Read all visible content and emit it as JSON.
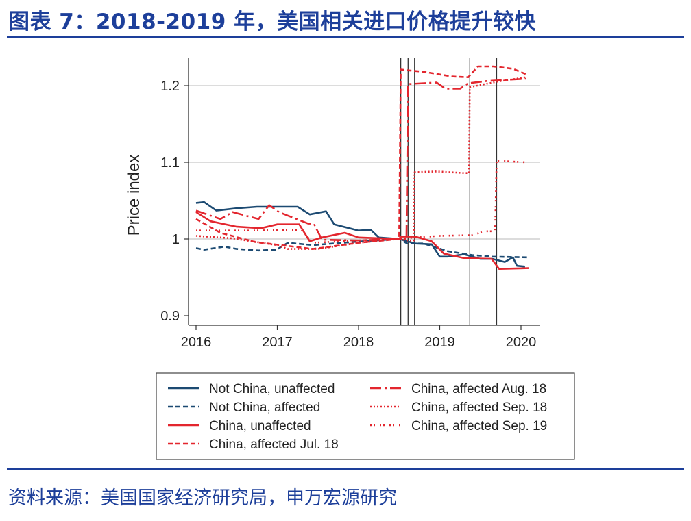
{
  "title": "图表 7：2018-2019 年，美国相关进口价格提升较快",
  "source": "资料来源：美国国家经济研究局，申万宏源研究",
  "chart_data": {
    "type": "line",
    "title": "",
    "xlabel": "",
    "ylabel": "Price index",
    "xlim": [
      2015.9,
      2020.2
    ],
    "ylim": [
      0.885,
      1.235
    ],
    "xticks": [
      2016,
      2017,
      2018,
      2019,
      2020
    ],
    "xtick_labels": [
      "2016",
      "2017",
      "2018",
      "2019",
      "2020"
    ],
    "yticks": [
      0.9,
      1,
      1.1,
      1.2
    ],
    "ytick_labels": [
      "0.9",
      "1",
      "1.1",
      "1.2"
    ],
    "grid": "horizontal",
    "legend_position": "bottom",
    "event_lines": [
      2018.52,
      2018.61,
      2018.69,
      2019.37,
      2019.7
    ],
    "colors": {
      "navy": "#1c4a72",
      "red": "#e3262e"
    },
    "series": [
      {
        "name": "Not China, unaffected",
        "color": "#1c4a72",
        "style": "solid",
        "x": [
          2016.0,
          2016.1,
          2016.25,
          2016.5,
          2016.75,
          2017.0,
          2017.25,
          2017.4,
          2017.6,
          2017.7,
          2018.0,
          2018.15,
          2018.25,
          2018.5,
          2018.7,
          2018.9,
          2019.0,
          2019.1,
          2019.3,
          2019.5,
          2019.65,
          2019.8,
          2019.9,
          2019.95,
          2020.05
        ],
        "y": [
          1.047,
          1.048,
          1.037,
          1.04,
          1.042,
          1.042,
          1.042,
          1.032,
          1.036,
          1.019,
          1.011,
          1.012,
          1.002,
          1.0,
          0.994,
          0.993,
          0.977,
          0.977,
          0.98,
          0.974,
          0.974,
          0.97,
          0.976,
          0.965,
          0.964
        ]
      },
      {
        "name": "Not China, affected",
        "color": "#1c4a72",
        "style": "dash",
        "x": [
          2016.0,
          2016.1,
          2016.35,
          2016.5,
          2016.77,
          2016.99,
          2017.13,
          2017.44,
          2017.8,
          2018.2,
          2018.5,
          2018.6,
          2018.8,
          2019.1,
          2019.4,
          2019.65,
          2020.1
        ],
        "y": [
          0.988,
          0.986,
          0.99,
          0.987,
          0.985,
          0.986,
          0.995,
          0.992,
          0.995,
          0.998,
          1.0,
          0.994,
          0.994,
          0.984,
          0.979,
          0.977,
          0.976
        ]
      },
      {
        "name": "China, unaffected",
        "color": "#e3262e",
        "style": "solid",
        "x": [
          2016.0,
          2016.18,
          2016.5,
          2016.8,
          2017.0,
          2017.27,
          2017.4,
          2017.55,
          2017.83,
          2018.0,
          2018.5,
          2018.52,
          2018.7,
          2018.9,
          2019.05,
          2019.3,
          2019.64,
          2019.73,
          2020.1
        ],
        "y": [
          1.035,
          1.023,
          1.016,
          1.014,
          1.019,
          1.019,
          0.997,
          1.002,
          1.008,
          1.002,
          1.0,
          1.003,
          1.003,
          0.997,
          0.981,
          0.975,
          0.974,
          0.961,
          0.962
        ]
      },
      {
        "name": "China, affected Jul. 18",
        "color": "#e3262e",
        "style": "dash",
        "x": [
          2016.0,
          2016.3,
          2016.73,
          2017.44,
          2018.0,
          2018.5,
          2018.52,
          2018.6,
          2018.8,
          2019.15,
          2019.35,
          2019.47,
          2019.66,
          2019.9,
          2020.06
        ],
        "y": [
          1.026,
          1.008,
          0.996,
          0.987,
          0.995,
          1.0,
          1.221,
          1.22,
          1.218,
          1.212,
          1.211,
          1.225,
          1.225,
          1.222,
          1.215
        ]
      },
      {
        "name": "China, affected Aug. 18",
        "color": "#e3262e",
        "style": "longdash",
        "x": [
          2016.0,
          2016.3,
          2016.45,
          2016.77,
          2016.9,
          2017.02,
          2017.38,
          2017.45,
          2017.55,
          2018.0,
          2018.5,
          2018.59,
          2018.61,
          2018.96,
          2019.07,
          2019.25,
          2019.35,
          2019.58,
          2020.06
        ],
        "y": [
          1.037,
          1.026,
          1.035,
          1.026,
          1.044,
          1.035,
          1.02,
          1.02,
          0.999,
          0.998,
          1.0,
          1.0,
          1.202,
          1.204,
          1.196,
          1.196,
          1.203,
          1.206,
          1.209
        ]
      },
      {
        "name": "China, affected Sep. 18",
        "color": "#e3262e",
        "style": "dot",
        "x": [
          2016.0,
          2016.43,
          2017.0,
          2017.13,
          2017.5,
          2018.0,
          2018.5,
          2018.6,
          2018.68,
          2018.69,
          2018.96,
          2019.3,
          2019.36,
          2019.37,
          2019.7,
          2020.06
        ],
        "y": [
          1.004,
          1.001,
          0.992,
          0.987,
          0.987,
          0.995,
          1.0,
          0.998,
          0.998,
          1.087,
          1.088,
          1.086,
          1.086,
          1.198,
          1.205,
          1.211
        ]
      },
      {
        "name": "China, affected Sep. 19",
        "color": "#e3262e",
        "style": "dashdot",
        "x": [
          2016.0,
          2016.7,
          2017.3,
          2017.43,
          2018.0,
          2018.5,
          2018.7,
          2019.0,
          2019.4,
          2019.55,
          2019.68,
          2019.7,
          2020.06
        ],
        "y": [
          1.011,
          1.011,
          1.012,
          0.995,
          0.998,
          1.0,
          1.002,
          1.004,
          1.005,
          1.01,
          1.01,
          1.102,
          1.1
        ]
      }
    ]
  }
}
